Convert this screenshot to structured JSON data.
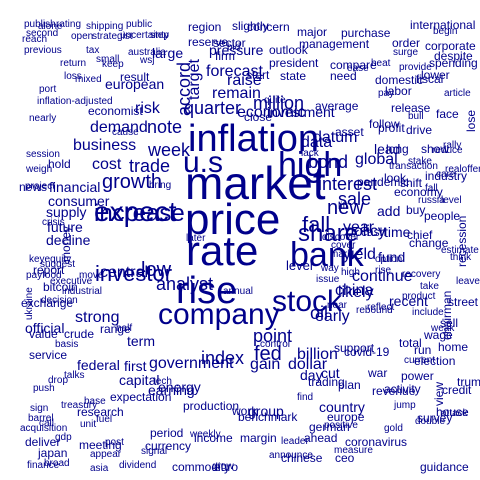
{
  "colors": {
    "word": "#00008b",
    "background": "#ffffff"
  },
  "words": [
    "market",
    "price",
    "rate",
    "inflation",
    "bank",
    "u.s",
    "high",
    "rise",
    "company",
    "stock",
    "expect",
    "increase",
    "share",
    "growth",
    "fall",
    "investor",
    "week",
    "quarter",
    "trade",
    "analyst",
    "economic",
    "interest",
    "bond",
    "sale",
    "low",
    "point",
    "central",
    "government",
    "year",
    "policy",
    "new",
    "demand",
    "business",
    "oil",
    "china",
    "cost",
    "yield",
    "million",
    "billion",
    "fed",
    "index",
    "energy",
    "strong",
    "early",
    "continue",
    "accord",
    "decline",
    "consumer",
    "investment",
    "data",
    "datum",
    "global",
    "risk",
    "remain",
    "note",
    "recent",
    "raise",
    "forecast",
    "pressure",
    "target",
    "dollar",
    "gain",
    "earning",
    "day",
    "cut",
    "level",
    "likely",
    "future",
    "supply",
    "financial",
    "federal",
    "capital",
    "term",
    "first",
    "add",
    "look",
    "lead",
    "show",
    "long",
    "time",
    "close",
    "follow",
    "buy",
    "chief",
    "fund",
    "europe",
    "european",
    "country",
    "group",
    "support",
    "plan",
    "revenue",
    "research",
    "production",
    "expectation",
    "trading",
    "war",
    "average",
    "official",
    "economist",
    "result",
    "firm",
    "sector",
    "large",
    "president",
    "outlook",
    "need",
    "start",
    "state",
    "compare",
    "management",
    "major",
    "purchase",
    "international",
    "election",
    "money",
    "profit",
    "asset",
    "drive",
    "change",
    "value",
    "crude",
    "service",
    "wage",
    "home",
    "run",
    "margin",
    "ahead",
    "income",
    "currency",
    "meeting",
    "period",
    "coronavirus",
    "covid-19",
    "survey",
    "pandemic",
    "exchange",
    "report",
    "news",
    "hold",
    "lower",
    "reserve",
    "bitcoin",
    "credit",
    "labor",
    "domestic",
    "release",
    "recession",
    "benchmark",
    "commodity",
    "euro",
    "chinese",
    "ceo",
    "guidance",
    "house",
    "chairman",
    "range",
    "total",
    "view",
    "activity",
    "trump",
    "power",
    "spending",
    "economy",
    "region",
    "slightly",
    "concern",
    "people",
    "face",
    "lose",
    "fiscal",
    "despite",
    "corporate",
    "order",
    "previous",
    "reach",
    "strategist",
    "uncertainty",
    "step",
    "public",
    "publish",
    "rating",
    "deliver",
    "japan",
    "finance",
    "dividend",
    "signal",
    "appear",
    "announce",
    "leader",
    "positive",
    "german",
    "shift",
    "industry",
    "estimate",
    "russia",
    "cash",
    "street",
    "sell",
    "weak",
    "gold",
    "grow",
    "work",
    "fuel",
    "unit",
    "base",
    "drop",
    "talks",
    "push",
    "basis",
    "industrial",
    "issue",
    "way",
    "product",
    "second",
    "shipping",
    "tax",
    "return",
    "loss",
    "port",
    "inflation-adjusted",
    "nearly",
    "session",
    "weigh",
    "project",
    "payfood",
    "keyequity",
    "ukraine",
    "decision",
    "executive",
    "suggest",
    "post",
    "barrel",
    "gdp",
    "treasury",
    "acquisition",
    "broad",
    "asia",
    "call",
    "sign",
    "jump",
    "double",
    "rally",
    "care",
    "fall",
    "level",
    "reduce",
    "stake",
    "transaction",
    "ease",
    "pay",
    "provide",
    "article",
    "surge",
    "begin",
    "australia",
    "wsj",
    "small",
    "keep",
    "open",
    "discover",
    "cover",
    "near",
    "high",
    "rebound",
    "recovery",
    "think",
    "leave",
    "take",
    "rise",
    "mark",
    "reflect",
    "current",
    "attack",
    "alone",
    "mixed",
    "cause",
    "bring",
    "later",
    "annual",
    "control",
    "find",
    "measure",
    "beat",
    "bull",
    "realoffer",
    "crisis",
    "move",
    "half",
    "tech",
    "weekly",
    "bid",
    "quite",
    "lack",
    "lift",
    "option",
    "include"
  ]
}
